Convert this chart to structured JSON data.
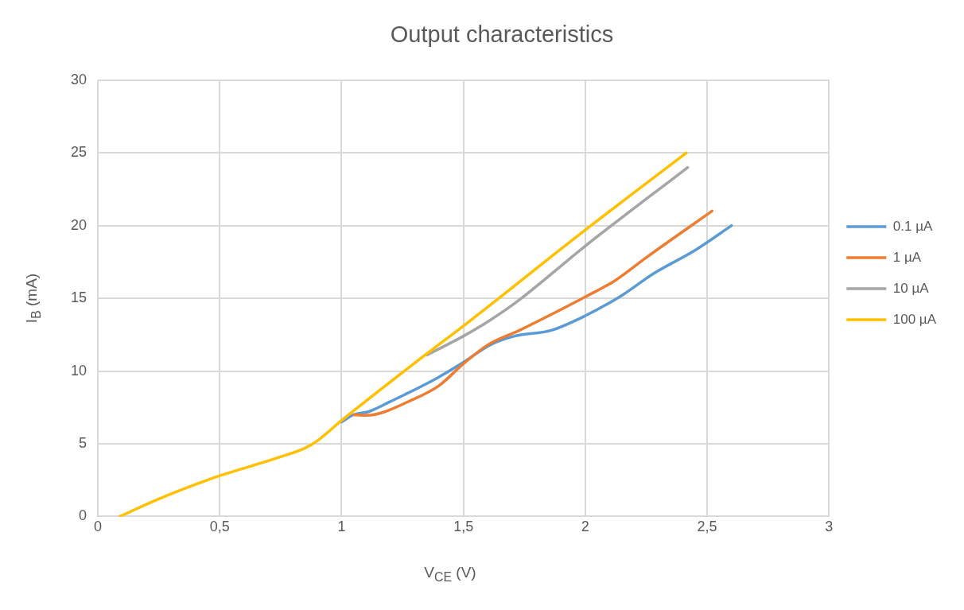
{
  "chart_data": {
    "type": "line",
    "title": "Output characteristics",
    "xlabel": "V$_{CE}$ (V)",
    "ylabel": "I$_{B}$ (mA)",
    "series": [
      {
        "name": "0.1 µA",
        "color": "#5b9bd5",
        "x": [
          1.0,
          1.05,
          1.11,
          1.2,
          1.39,
          1.5,
          1.61,
          1.71,
          1.86,
          2.0,
          2.15,
          2.28,
          2.45,
          2.6
        ],
        "values": [
          6.5,
          7.0,
          7.2,
          7.9,
          9.5,
          10.6,
          11.8,
          12.4,
          12.8,
          13.8,
          15.2,
          16.7,
          18.3,
          20
        ]
      },
      {
        "name": "1 µA",
        "color": "#ed7d31",
        "x": [
          1.05,
          1.1,
          1.3,
          1.4,
          1.5,
          1.6,
          1.73,
          1.85,
          2.0,
          2.12,
          2.25,
          2.52
        ],
        "values": [
          7.0,
          6.95,
          8.1,
          9.0,
          10.5,
          11.8,
          12.8,
          13.8,
          15.1,
          16.2,
          17.8,
          21
        ]
      },
      {
        "name": "10 µA",
        "color": "#a5a5a5",
        "x": [
          1.35,
          1.5,
          1.61,
          1.73,
          2.0,
          2.42
        ],
        "values": [
          11.1,
          12.4,
          13.5,
          14.9,
          18.6,
          24
        ]
      },
      {
        "name": "100 µA",
        "color": "#ffc000",
        "x": [
          0.09,
          0.25,
          0.4,
          0.5,
          0.75,
          0.85,
          0.9,
          1.0,
          1.35,
          1.5,
          2.0,
          2.415
        ],
        "values": [
          0,
          1.2,
          2.2,
          2.8,
          4.1,
          4.7,
          5.2,
          6.6,
          11.2,
          13.1,
          19.7,
          25
        ]
      }
    ],
    "xlim": [
      0,
      3
    ],
    "xticks": [
      0,
      {
        "value": 0.5,
        "label": "0,5"
      },
      1,
      {
        "value": 1.5,
        "label": "1,5"
      },
      2,
      {
        "value": 2.5,
        "label": "2,5"
      },
      3
    ],
    "ylim": [
      0,
      30
    ],
    "yticks": [
      0,
      5,
      10,
      15,
      20,
      25,
      30
    ],
    "grid": true,
    "legend": "right",
    "marker": "none",
    "line_style": "solid"
  }
}
